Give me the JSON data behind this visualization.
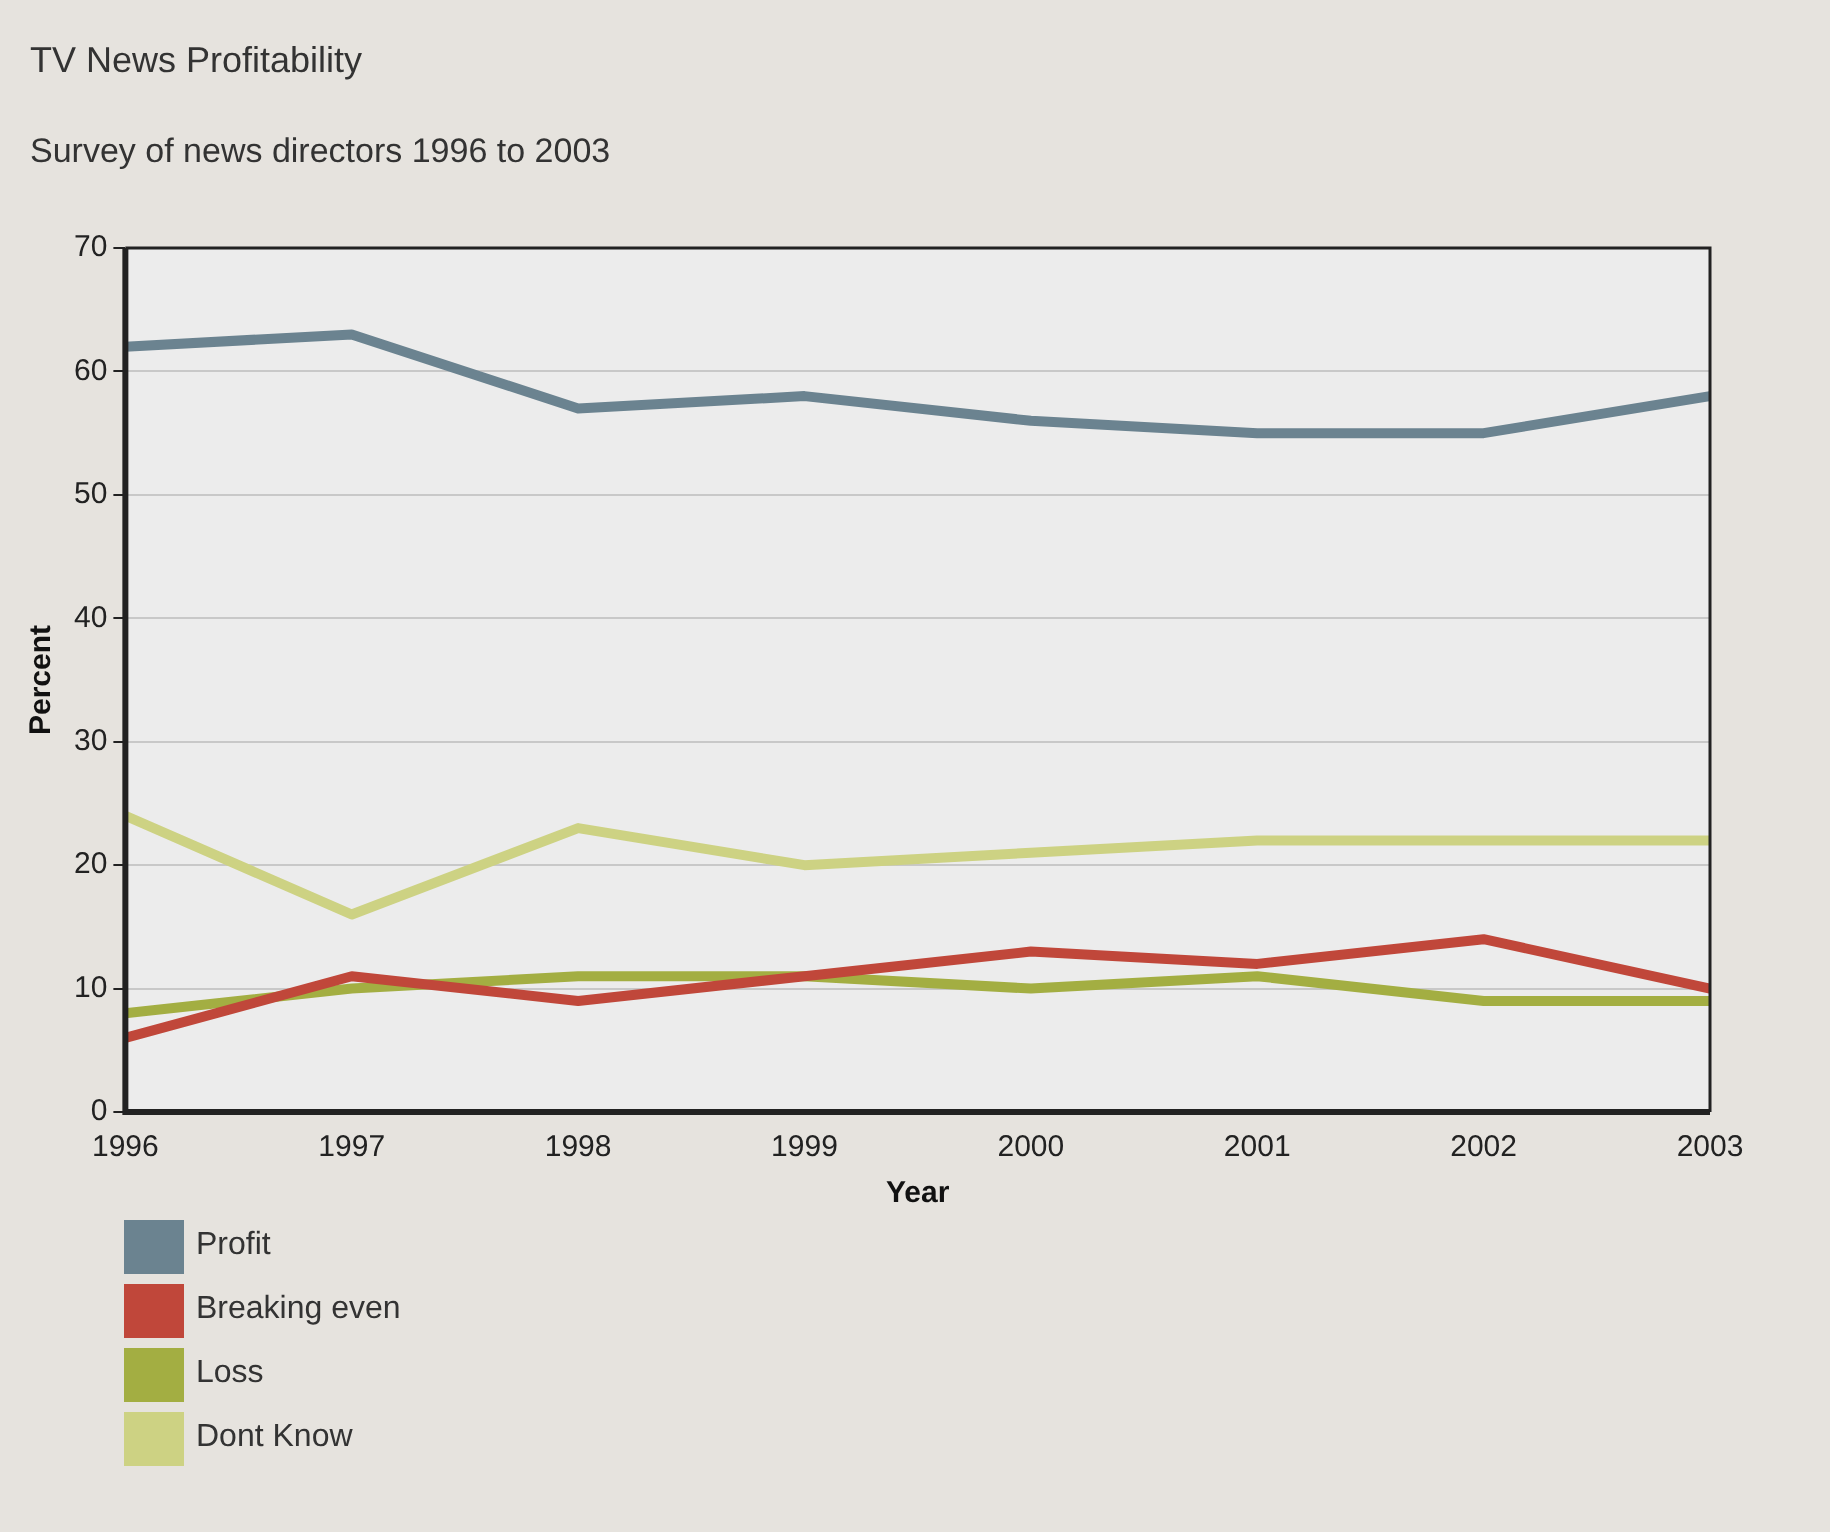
{
  "chart_data": {
    "type": "line",
    "title": "TV News Profitability",
    "subtitle": "Survey of news directors 1996 to 2003",
    "xlabel": "Year",
    "ylabel": "Percent",
    "categories": [
      "1996",
      "1997",
      "1998",
      "1999",
      "2000",
      "2001",
      "2002",
      "2003"
    ],
    "series": [
      {
        "name": "Profit",
        "color": "#6b8390",
        "values": [
          62,
          63,
          57,
          58,
          56,
          55,
          55,
          58
        ]
      },
      {
        "name": "Breaking even",
        "color": "#c0473a",
        "values": [
          6,
          11,
          9,
          11,
          13,
          12,
          14,
          10
        ]
      },
      {
        "name": "Loss",
        "color": "#a3ae42",
        "values": [
          8,
          10,
          11,
          11,
          10,
          11,
          9,
          9
        ]
      },
      {
        "name": "Dont Know",
        "color": "#cdd283",
        "values": [
          24,
          16,
          23,
          20,
          21,
          22,
          22,
          22
        ]
      }
    ],
    "ylim": [
      0,
      70
    ],
    "yticks": [
      0,
      10,
      20,
      30,
      40,
      50,
      60,
      70
    ],
    "grid": "y",
    "legend": "bottom left",
    "marker": "none"
  }
}
